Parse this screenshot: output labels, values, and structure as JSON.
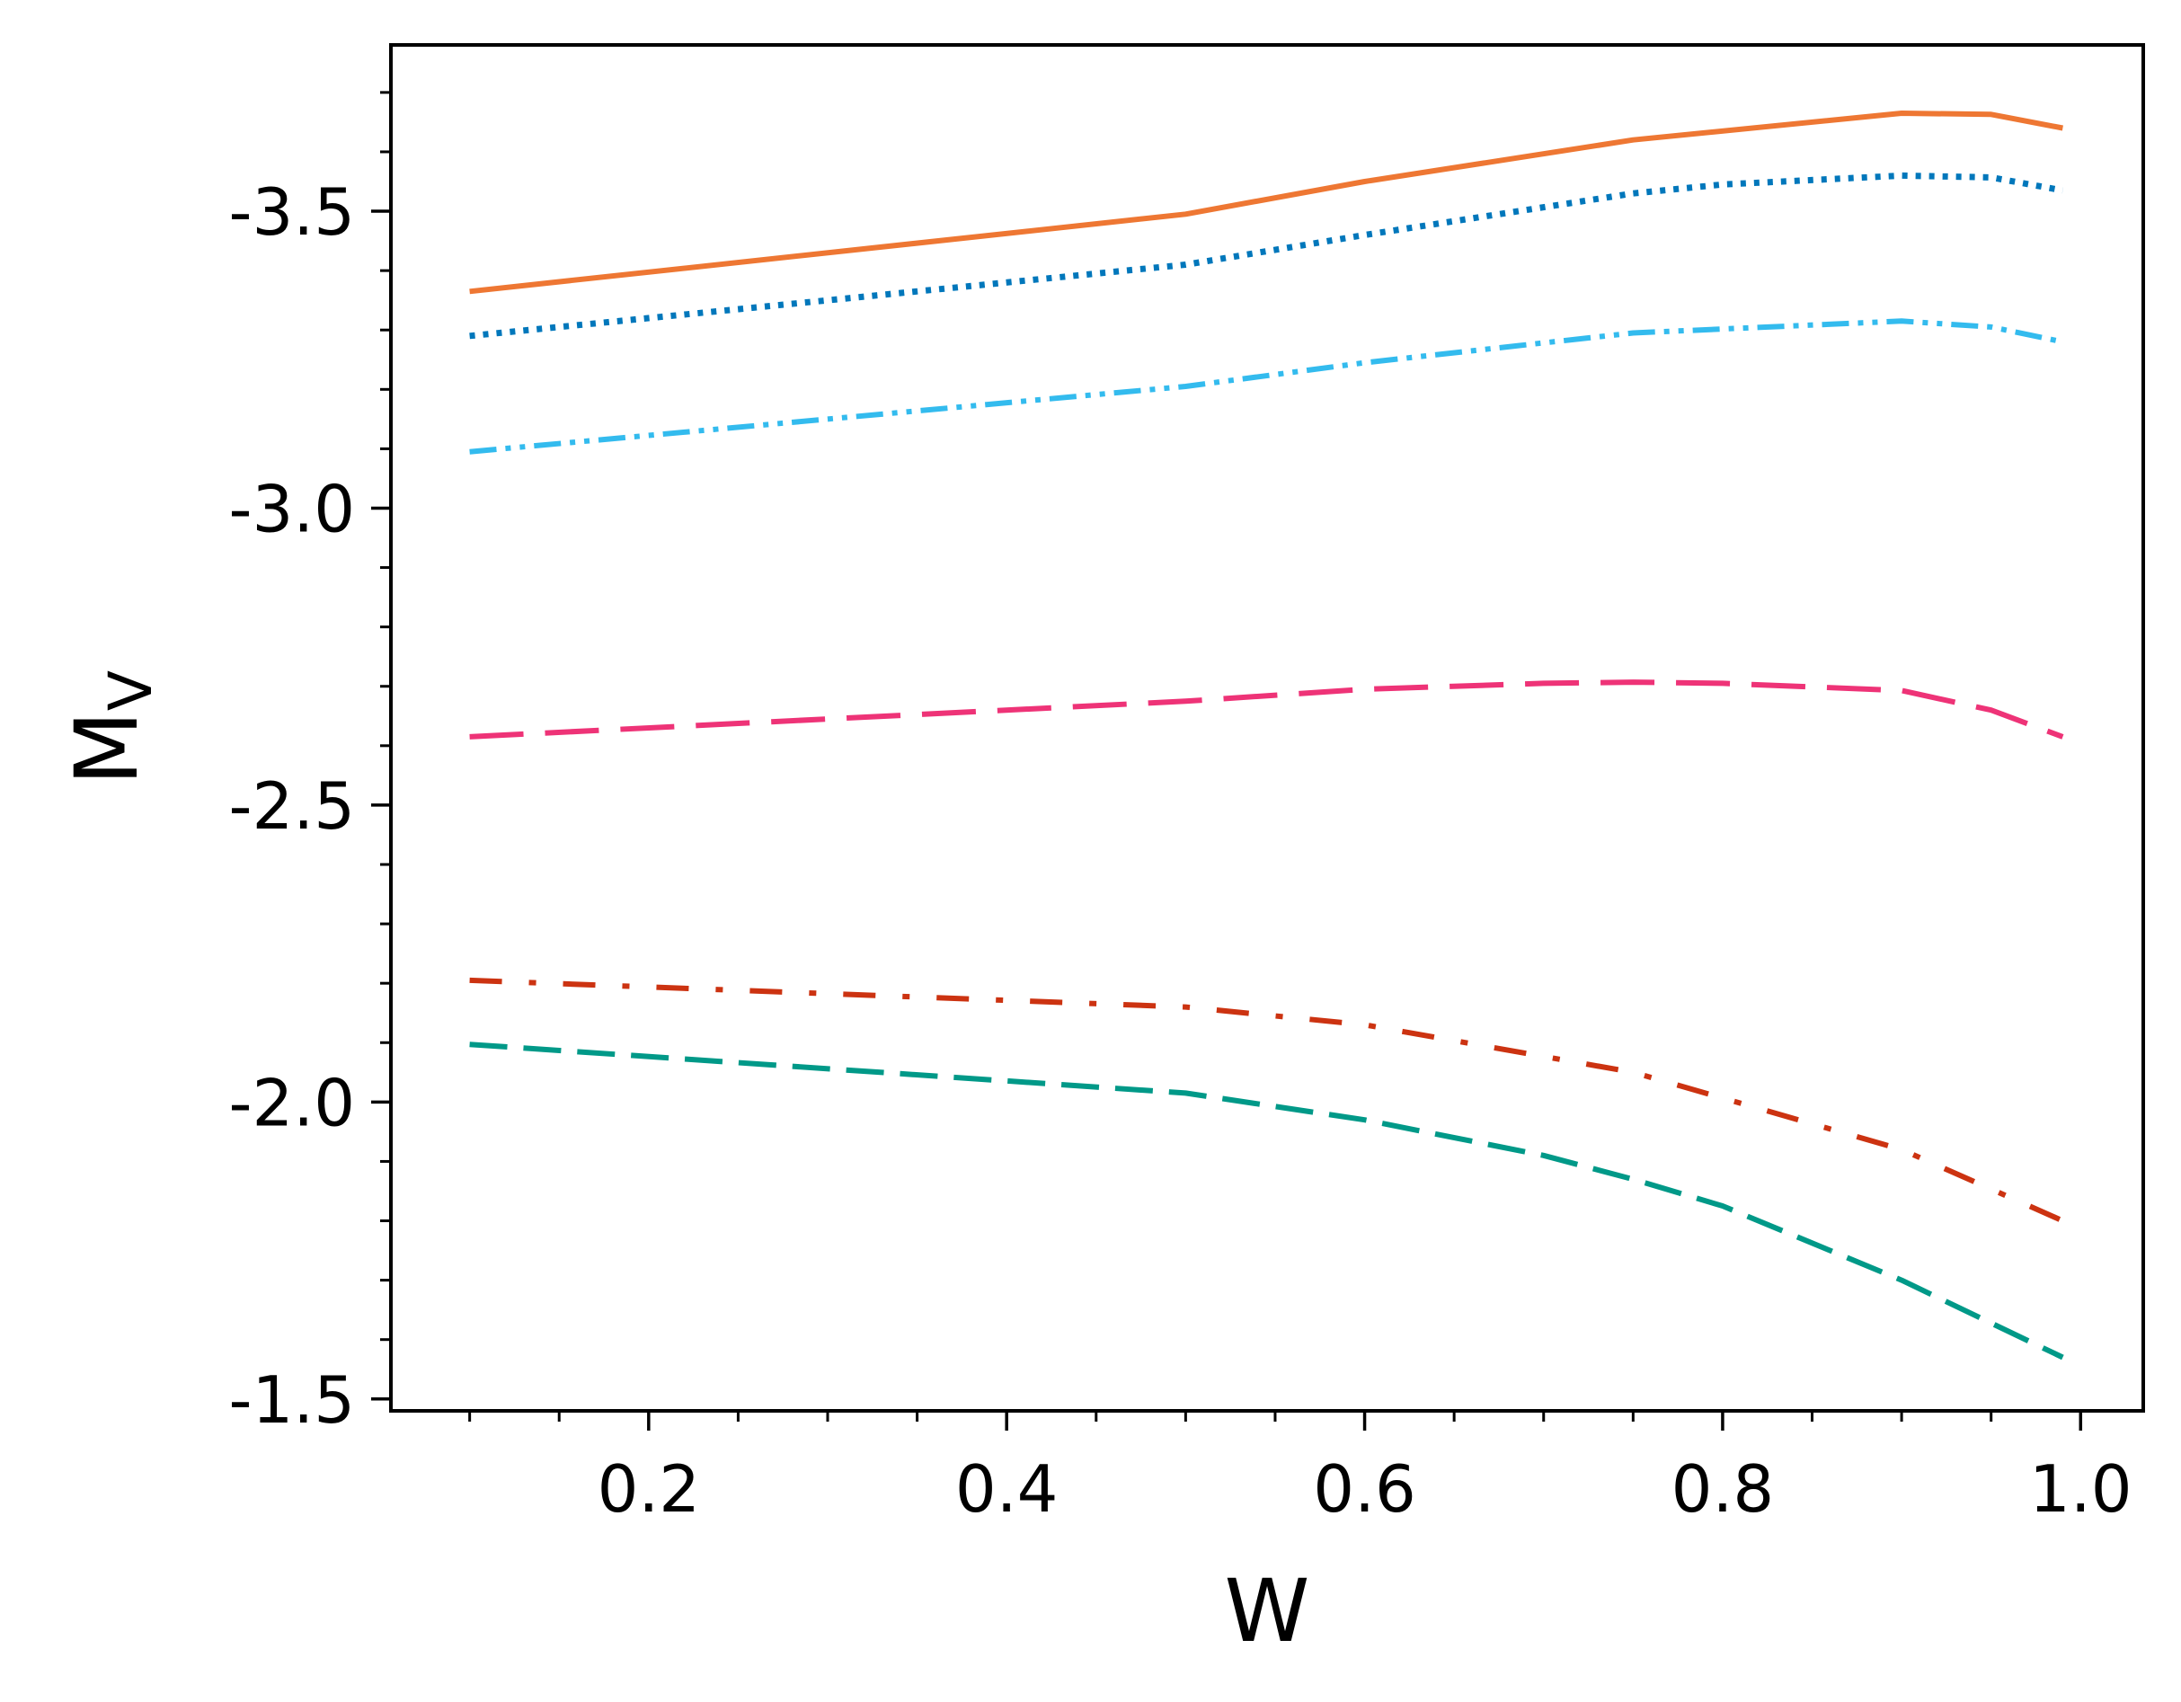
{
  "chart_data": {
    "type": "line",
    "title": "",
    "xlabel": "W",
    "ylabel": {
      "main": "M",
      "sub": "V"
    },
    "xlim": [
      0.056,
      1.035
    ],
    "ylim": [
      -3.78,
      -1.48
    ],
    "y_inverted": true,
    "x_ticks": [
      0.2,
      0.4,
      0.6,
      0.8,
      1.0
    ],
    "x_tick_labels": [
      "0.2",
      "0.4",
      "0.6",
      "0.8",
      "1.0"
    ],
    "y_ticks": [
      -3.5,
      -3.0,
      -2.5,
      -2.0,
      -1.5
    ],
    "y_tick_labels": [
      "-3.5",
      "-3.0",
      "-2.5",
      "-2.0",
      "-1.5"
    ],
    "grid": false,
    "series": [
      {
        "color": "#EE7733",
        "style": "solid",
        "x": [
          0.1,
          0.5,
          0.6,
          0.75,
          0.9,
          0.95,
          0.99
        ],
        "y": [
          -3.365,
          -3.495,
          -3.55,
          -3.62,
          -3.665,
          -3.663,
          -3.64
        ]
      },
      {
        "color": "#0077BB",
        "style": "dotted",
        "x": [
          0.1,
          0.5,
          0.6,
          0.75,
          0.8,
          0.9,
          0.95,
          0.99
        ],
        "y": [
          -3.29,
          -3.41,
          -3.46,
          -3.53,
          -3.545,
          -3.56,
          -3.557,
          -3.535
        ]
      },
      {
        "color": "#33BBEE",
        "style": "dashdotdot",
        "x": [
          0.1,
          0.5,
          0.6,
          0.75,
          0.9,
          0.95,
          0.99
        ],
        "y": [
          -3.095,
          -3.205,
          -3.245,
          -3.295,
          -3.315,
          -3.305,
          -3.28
        ]
      },
      {
        "color": "#EE3377",
        "style": "longdash",
        "x": [
          0.1,
          0.5,
          0.6,
          0.7,
          0.75,
          0.8,
          0.9,
          0.95,
          0.99
        ],
        "y": [
          -2.615,
          -2.675,
          -2.695,
          -2.705,
          -2.707,
          -2.705,
          -2.693,
          -2.66,
          -2.615
        ]
      },
      {
        "color": "#CC3311",
        "style": "dashdot",
        "x": [
          0.1,
          0.5,
          0.6,
          0.75,
          0.9,
          0.99
        ],
        "y": [
          -2.205,
          -2.16,
          -2.13,
          -2.05,
          -1.92,
          -1.8
        ]
      },
      {
        "color": "#009988",
        "style": "dashed",
        "x": [
          0.1,
          0.5,
          0.6,
          0.7,
          0.75,
          0.8,
          0.9,
          0.99
        ],
        "y": [
          -2.097,
          -2.015,
          -1.97,
          -1.91,
          -1.87,
          -1.825,
          -1.7,
          -1.57
        ]
      }
    ]
  }
}
